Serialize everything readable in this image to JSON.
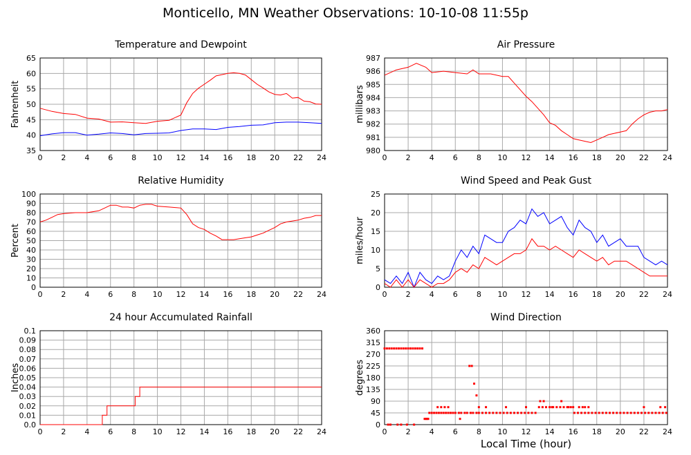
{
  "title": "Monticello, MN Weather Observations: 10-10-08 11:55p",
  "x_axis_label": "Local Time (hour)",
  "colors": {
    "red": "#ff0000",
    "blue": "#0000ff",
    "grid": "#a8a8a8",
    "axis": "#000000"
  },
  "chart_data": [
    {
      "id": "temp",
      "type": "line",
      "title": "Temperature and Dewpoint",
      "ylabel": "Fahrenheit",
      "xlabel": "",
      "xlim": [
        0,
        24
      ],
      "xticks": [
        0,
        2,
        4,
        6,
        8,
        10,
        12,
        14,
        16,
        18,
        20,
        22,
        24
      ],
      "ylim": [
        35,
        65
      ],
      "yticks": [
        35,
        40,
        45,
        50,
        55,
        60,
        65
      ],
      "grid": true,
      "series": [
        {
          "color": "#ff0000",
          "x": [
            0,
            1,
            2,
            3,
            4,
            5,
            6,
            7,
            8,
            9,
            10,
            11,
            12,
            12.5,
            13,
            13.5,
            14,
            14.5,
            15,
            15.5,
            16,
            16.5,
            17,
            17.5,
            18,
            18.5,
            19,
            19.5,
            20,
            20.5,
            21,
            21.5,
            22,
            22.5,
            23,
            23.5,
            24
          ],
          "values": [
            48.7,
            47.7,
            47.0,
            46.7,
            45.5,
            45.2,
            44.2,
            44.3,
            44.0,
            43.8,
            44.5,
            44.8,
            46.5,
            50.5,
            53.5,
            55.2,
            56.5,
            57.8,
            59.2,
            59.6,
            60.0,
            60.2,
            60.0,
            59.5,
            58.0,
            56.5,
            55.3,
            54.0,
            53.2,
            53.0,
            53.5,
            52.0,
            52.2,
            51.0,
            50.8,
            50.1,
            50.0
          ]
        },
        {
          "color": "#0000ff",
          "x": [
            0,
            1,
            2,
            3,
            4,
            5,
            6,
            7,
            8,
            9,
            10,
            11,
            12,
            13,
            14,
            15,
            16,
            17,
            18,
            19,
            20,
            21,
            22,
            23,
            24
          ],
          "values": [
            39.8,
            40.4,
            40.8,
            40.8,
            40.0,
            40.3,
            40.7,
            40.5,
            40.1,
            40.5,
            40.6,
            40.7,
            41.5,
            42.0,
            42.0,
            41.8,
            42.5,
            42.8,
            43.2,
            43.3,
            44.0,
            44.2,
            44.2,
            44.0,
            43.8
          ]
        }
      ]
    },
    {
      "id": "pressure",
      "type": "line",
      "title": "Air Pressure",
      "ylabel": "millibars",
      "xlabel": "",
      "xlim": [
        0,
        24
      ],
      "xticks": [
        0,
        2,
        4,
        6,
        8,
        10,
        12,
        14,
        16,
        18,
        20,
        22,
        24
      ],
      "ylim": [
        980,
        987
      ],
      "yticks": [
        980,
        981,
        982,
        983,
        984,
        985,
        986,
        987
      ],
      "grid": true,
      "series": [
        {
          "color": "#ff0000",
          "x": [
            0,
            1,
            2,
            2.7,
            3.5,
            4,
            5,
            6,
            7,
            7.5,
            8,
            9,
            10,
            10.5,
            11,
            11.5,
            12,
            12.5,
            13,
            13.5,
            14,
            14.5,
            15,
            15.5,
            16,
            16.5,
            17,
            17.5,
            18,
            18.5,
            19,
            19.5,
            20,
            20.5,
            21,
            21.5,
            22,
            22.5,
            23,
            23.5,
            24
          ],
          "values": [
            985.7,
            986.1,
            986.3,
            986.6,
            986.3,
            985.9,
            986.0,
            985.9,
            985.8,
            986.1,
            985.8,
            985.8,
            985.6,
            985.6,
            985.1,
            984.6,
            984.1,
            983.7,
            983.2,
            982.7,
            982.1,
            981.9,
            981.5,
            981.2,
            980.9,
            980.8,
            980.7,
            980.6,
            980.8,
            981.0,
            981.2,
            981.3,
            981.4,
            981.5,
            982.0,
            982.4,
            982.7,
            982.9,
            983.0,
            983.0,
            983.1
          ]
        }
      ]
    },
    {
      "id": "humidity",
      "type": "line",
      "title": "Relative Humidity",
      "ylabel": "Percent",
      "xlabel": "",
      "xlim": [
        0,
        24
      ],
      "xticks": [
        0,
        2,
        4,
        6,
        8,
        10,
        12,
        14,
        16,
        18,
        20,
        22,
        24
      ],
      "ylim": [
        0,
        100
      ],
      "yticks": [
        0,
        10,
        20,
        30,
        40,
        50,
        60,
        70,
        80,
        90,
        100
      ],
      "grid": true,
      "series": [
        {
          "color": "#ff0000",
          "x": [
            0,
            0.5,
            1,
            1.5,
            2,
            3,
            4,
            5,
            5.5,
            6,
            6.5,
            7,
            7.5,
            8,
            8.5,
            9,
            9.5,
            10,
            11,
            12,
            12.5,
            13,
            13.5,
            14,
            14.5,
            15,
            15.5,
            16,
            16.5,
            17,
            17.5,
            18,
            18.5,
            19,
            19.5,
            20,
            20.5,
            21,
            21.5,
            22,
            22.5,
            23,
            23.5,
            24
          ],
          "values": [
            70,
            72,
            75,
            78,
            79,
            80,
            80,
            82,
            85,
            88,
            88,
            86,
            86,
            85,
            88,
            89,
            89,
            87,
            86,
            85,
            78,
            68,
            64,
            62,
            58,
            55,
            51,
            51,
            51,
            52,
            53,
            54,
            56,
            58,
            61,
            64,
            68,
            70,
            71,
            72,
            74,
            75,
            77,
            77
          ]
        }
      ]
    },
    {
      "id": "wind",
      "type": "line",
      "title": "Wind Speed and Peak Gust",
      "ylabel": "miles/hour",
      "xlabel": "",
      "xlim": [
        0,
        24
      ],
      "xticks": [
        0,
        2,
        4,
        6,
        8,
        10,
        12,
        14,
        16,
        18,
        20,
        22,
        24
      ],
      "ylim": [
        0,
        25
      ],
      "yticks": [
        0,
        5,
        10,
        15,
        20,
        25
      ],
      "grid": true,
      "series": [
        {
          "color": "#0000ff",
          "x": [
            0,
            0.5,
            1,
            1.5,
            2,
            2.5,
            3,
            3.5,
            4,
            4.5,
            5,
            5.5,
            6,
            6.5,
            7,
            7.5,
            8,
            8.5,
            9,
            9.5,
            10,
            10.5,
            11,
            11.5,
            12,
            12.5,
            13,
            13.5,
            14,
            14.5,
            15,
            15.5,
            16,
            16.5,
            17,
            17.5,
            18,
            18.5,
            19,
            19.5,
            20,
            20.5,
            21,
            21.5,
            22,
            22.5,
            23,
            23.5,
            24
          ],
          "values": [
            2,
            1,
            3,
            1,
            4,
            0,
            4,
            2,
            1,
            3,
            2,
            3,
            7,
            10,
            8,
            11,
            9,
            14,
            13,
            12,
            12,
            15,
            16,
            18,
            17,
            21,
            19,
            20,
            17,
            18,
            19,
            16,
            14,
            18,
            16,
            15,
            12,
            14,
            11,
            12,
            13,
            11,
            11,
            11,
            8,
            7,
            6,
            7,
            6
          ]
        },
        {
          "color": "#ff0000",
          "x": [
            0,
            0.5,
            1,
            1.5,
            2,
            2.5,
            3,
            3.5,
            4,
            4.5,
            5,
            5.5,
            6,
            6.5,
            7,
            7.5,
            8,
            8.5,
            9,
            9.5,
            10,
            10.5,
            11,
            11.5,
            12,
            12.5,
            13,
            13.5,
            14,
            14.5,
            15,
            15.5,
            16,
            16.5,
            17,
            17.5,
            18,
            18.5,
            19,
            19.5,
            20,
            20.5,
            21,
            21.5,
            22,
            22.5,
            23,
            23.5,
            24
          ],
          "values": [
            1,
            0,
            2,
            0,
            2,
            0,
            2,
            1,
            0,
            1,
            1,
            2,
            4,
            5,
            4,
            6,
            5,
            8,
            7,
            6,
            7,
            8,
            9,
            9,
            10,
            13,
            11,
            11,
            10,
            11,
            10,
            9,
            8,
            10,
            9,
            8,
            7,
            8,
            6,
            7,
            7,
            7,
            6,
            5,
            4,
            3,
            3,
            3,
            3
          ]
        }
      ]
    },
    {
      "id": "rain",
      "type": "line",
      "title": "24 hour Accumulated Rainfall",
      "ylabel": "Inches",
      "xlabel": "",
      "xlim": [
        0,
        24
      ],
      "xticks": [
        0,
        2,
        4,
        6,
        8,
        10,
        12,
        14,
        16,
        18,
        20,
        22,
        24
      ],
      "ylim": [
        0,
        0.1
      ],
      "yticks": [
        "0.0",
        "0.01",
        "0.02",
        "0.03",
        "0.04",
        "0.05",
        "0.06",
        "0.07",
        "0.08",
        "0.09",
        "0.1"
      ],
      "grid": true,
      "series": [
        {
          "color": "#ff0000",
          "x": [
            0,
            5.3,
            5.3,
            5.7,
            5.7,
            8.1,
            8.1,
            8.5,
            8.5,
            24
          ],
          "values": [
            0,
            0,
            0.01,
            0.01,
            0.02,
            0.02,
            0.03,
            0.03,
            0.04,
            0.04
          ]
        }
      ]
    },
    {
      "id": "direction",
      "type": "scatter",
      "title": "Wind Direction",
      "ylabel": "degrees",
      "xlabel": "Local Time (hour)",
      "xlim": [
        0,
        24
      ],
      "xticks": [
        0,
        2,
        4,
        6,
        8,
        10,
        12,
        14,
        16,
        18,
        20,
        22,
        24
      ],
      "ylim": [
        0,
        360
      ],
      "yticks": [
        0,
        45,
        90,
        135,
        180,
        225,
        270,
        315,
        360
      ],
      "grid": true,
      "series": [
        {
          "color": "#ff0000",
          "x": [
            0,
            0.2,
            0.4,
            0.6,
            0.8,
            1.0,
            1.2,
            1.4,
            1.6,
            1.8,
            2.0,
            2.2,
            2.4,
            2.6,
            2.8,
            3.0,
            3.2,
            0.3,
            0.5,
            1.1,
            1.4,
            1.9,
            2.5,
            3.4,
            3.6,
            3.8,
            4.0,
            4.2,
            4.4,
            4.6,
            4.8,
            5.0,
            5.2,
            5.4,
            5.6,
            5.8,
            6.0,
            6.3,
            6.5,
            6.8,
            7.0,
            7.3,
            7.5,
            7.8,
            8.0,
            8.3,
            8.6,
            8.9,
            9.2,
            9.5,
            9.8,
            10.1,
            10.4,
            10.7,
            11.0,
            11.3,
            11.6,
            11.9,
            12.2,
            12.5,
            12.8,
            13.1,
            13.4,
            13.7,
            14.0,
            14.3,
            14.6,
            14.9,
            15.2,
            15.5,
            15.8,
            16.1,
            16.4,
            16.7,
            17.0,
            17.3,
            17.6,
            17.9,
            18.2,
            18.5,
            18.8,
            19.1,
            19.4,
            19.7,
            20.0,
            20.3,
            20.6,
            20.9,
            21.2,
            21.5,
            21.8,
            22.1,
            22.4,
            22.7,
            23.0,
            23.3,
            23.6,
            23.9,
            4.5,
            4.8,
            5.1,
            5.4,
            8.0,
            8.6,
            10.3,
            12.0,
            13.2,
            13.5,
            14.2,
            15.0,
            15.6,
            16.0,
            16.5,
            16.8,
            17.0,
            17.3,
            22.0,
            23.4,
            23.8,
            6.4,
            7.2,
            7.4,
            7.6,
            7.8,
            3.5,
            3.7
          ],
          "values": [
            292,
            292,
            292,
            292,
            292,
            292,
            292,
            292,
            292,
            292,
            292,
            292,
            292,
            292,
            292,
            292,
            292,
            0,
            0,
            0,
            0,
            0,
            0,
            22,
            22,
            45,
            45,
            45,
            45,
            45,
            45,
            45,
            45,
            45,
            45,
            45,
            45,
            45,
            45,
            45,
            45,
            45,
            45,
            45,
            45,
            45,
            45,
            45,
            45,
            45,
            45,
            45,
            45,
            45,
            45,
            45,
            45,
            45,
            45,
            45,
            45,
            67,
            67,
            67,
            67,
            67,
            67,
            67,
            67,
            67,
            67,
            45,
            45,
            45,
            45,
            45,
            45,
            45,
            45,
            45,
            45,
            45,
            45,
            45,
            45,
            45,
            45,
            45,
            45,
            45,
            45,
            45,
            45,
            45,
            45,
            45,
            45,
            45,
            67,
            67,
            67,
            67,
            67,
            67,
            67,
            67,
            90,
            90,
            67,
            90,
            67,
            67,
            67,
            67,
            67,
            67,
            67,
            67,
            67,
            22,
            225,
            225,
            157,
            112,
            22,
            22
          ]
        }
      ]
    }
  ]
}
